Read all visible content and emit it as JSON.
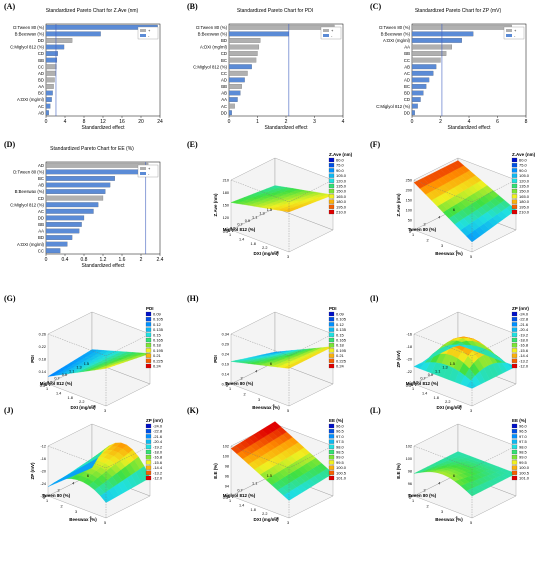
{
  "figure": {
    "panel_labels": [
      "(A)",
      "(B)",
      "(C)",
      "(D)",
      "(E)",
      "(F)",
      "(G)",
      "(H)",
      "(I)",
      "(J)",
      "(K)",
      "(L)"
    ]
  },
  "chart_data": [
    {
      "type": "bar",
      "panel": "A",
      "title": "Standardized Pareto Chart for Z.Ave (nm)",
      "xlabel": "Standardized effect",
      "legend": [
        "+",
        "-"
      ],
      "colors": {
        "plus": "#b0b0b0",
        "minus": "#5b8bd6"
      },
      "categories": [
        "D:Tween 80 (%)",
        "B:Beeswax (%)",
        "DD",
        "C:Miglyol 812 (%)",
        "CD",
        "BB",
        "CC",
        "AD",
        "BD",
        "AA",
        "BC",
        "A:DXI (mg/ml)",
        "AC",
        "AB"
      ],
      "values": [
        23.5,
        11.5,
        5.5,
        3.8,
        2.5,
        2.3,
        2.2,
        2.0,
        1.8,
        1.6,
        1.4,
        1.2,
        0.9,
        0.6
      ],
      "signs": [
        "-",
        "-",
        "+",
        "-",
        "-",
        "-",
        "+",
        "+",
        "+",
        "+",
        "-",
        "-",
        "-",
        "-"
      ],
      "xticks": [
        0,
        4,
        8,
        12,
        16,
        20,
        24
      ],
      "xlim": [
        0,
        24
      ],
      "ref_line": 2.1
    },
    {
      "type": "bar",
      "panel": "B",
      "title": "Standardized Pareto Chart for PDI",
      "xlabel": "Standardized effect",
      "legend": [
        "+",
        "-"
      ],
      "categories": [
        "D:Tween 80 (%)",
        "B:Beeswax (%)",
        "BD",
        "A:DXI (mg/ml)",
        "CD",
        "BC",
        "C:Miglyol 812 (%)",
        "CC",
        "AD",
        "BB",
        "AB",
        "AA",
        "AC",
        "DD"
      ],
      "values": [
        3.7,
        2.1,
        1.1,
        1.05,
        1.0,
        0.95,
        0.8,
        0.65,
        0.55,
        0.45,
        0.4,
        0.3,
        0.2,
        0.1
      ],
      "signs": [
        "+",
        "-",
        "+",
        "+",
        "+",
        "+",
        "-",
        "+",
        "-",
        "+",
        "-",
        "-",
        "+",
        "-"
      ],
      "xticks": [
        0,
        1,
        2,
        3,
        4
      ],
      "xlim": [
        0,
        4
      ],
      "ref_line": 2.1
    },
    {
      "type": "bar",
      "panel": "C",
      "title": "Standardized Pareto Chart for ZP (mV)",
      "xlabel": "Standardized effect",
      "legend": [
        "+",
        "-"
      ],
      "categories": [
        "D:Tween 80 (%)",
        "B:Beeswax (%)",
        "A:DXI (mg/ml)",
        "AA",
        "BB",
        "CC",
        "AB",
        "AC",
        "AD",
        "BC",
        "BD",
        "CD",
        "C:Miglyol 812 (%)",
        "DD"
      ],
      "values": [
        7.0,
        4.3,
        3.5,
        2.8,
        2.4,
        2.0,
        1.7,
        1.5,
        1.2,
        1.0,
        0.8,
        0.6,
        0.4,
        0.2
      ],
      "signs": [
        "+",
        "-",
        "-",
        "+",
        "+",
        "+",
        "-",
        "-",
        "-",
        "-",
        "-",
        "-",
        "-",
        "-"
      ],
      "xticks": [
        0,
        2,
        4,
        6,
        8
      ],
      "xlim": [
        0,
        8
      ],
      "ref_line": 2.1
    },
    {
      "type": "bar",
      "panel": "D",
      "title": "Standardized Pareto Chart for EE (%)",
      "xlabel": "Standardized effect",
      "legend": [
        "+",
        "-"
      ],
      "categories": [
        "AD",
        "D:Tween 80 (%)",
        "BC",
        "AB",
        "B:Beeswax (%)",
        "CD",
        "C:Miglyol 812 (%)",
        "AC",
        "DD",
        "BB",
        "AA",
        "BD",
        "A:DXI (mg/ml)",
        "CC"
      ],
      "values": [
        2.15,
        2.1,
        1.45,
        1.35,
        1.25,
        1.2,
        1.1,
        1.0,
        0.8,
        0.75,
        0.7,
        0.55,
        0.45,
        0.3
      ],
      "signs": [
        "+",
        "-",
        "-",
        "-",
        "-",
        "+",
        "-",
        "-",
        "-",
        "-",
        "-",
        "-",
        "-",
        "-"
      ],
      "xticks": [
        0,
        0.4,
        0.8,
        1.2,
        1.6,
        2.0,
        2.4
      ],
      "xlim": [
        0,
        2.4
      ],
      "ref_line": 2.1
    },
    {
      "type": "surface",
      "panel": "E",
      "zlabel": "Z.Ave (nm)",
      "xlabel": "DXI (mg/ml)",
      "ylabel": "Miglyol 812 (%)",
      "legend_title": "Z.Ave (nm)",
      "legend_items": [
        "60.0",
        "75.0",
        "90.0",
        "105.0",
        "120.0",
        "135.0",
        "150.0",
        "165.0",
        "180.0",
        "195.0",
        "210.0"
      ],
      "xticks": [
        "1",
        "1.4",
        "1.8",
        "2.2",
        "2.6",
        "3"
      ],
      "yticks": [
        "0.3",
        "0.5",
        "0.7",
        "0.9",
        "1.1",
        "1.3",
        "1.5"
      ],
      "zticks": [
        "210",
        "180",
        "150",
        "120",
        "90"
      ]
    },
    {
      "type": "surface",
      "panel": "F",
      "zlabel": "Z.Ave (nm)",
      "xlabel": "Beeswax (%)",
      "ylabel": "Tween 80 (%)",
      "legend_title": "Z.Ave (nm)",
      "legend_items": [
        "60.0",
        "75.0",
        "90.0",
        "105.0",
        "120.0",
        "135.0",
        "150.0",
        "165.0",
        "180.0",
        "195.0",
        "210.0"
      ],
      "xticks": [
        "1",
        "2",
        "3",
        "4",
        "5"
      ],
      "yticks": [
        "0",
        "2",
        "4",
        "6"
      ],
      "zticks": [
        "250",
        "200",
        "150",
        "100",
        "50",
        "0"
      ]
    },
    {
      "type": "surface",
      "panel": "G",
      "zlabel": "PDI",
      "xlabel": "DXI (mg/ml)",
      "ylabel": "Miglyol 812 (%)",
      "legend_title": "PDI",
      "legend_items": [
        "0.09",
        "0.105",
        "0.12",
        "0.135",
        "0.15",
        "0.165",
        "0.18",
        "0.195",
        "0.21",
        "0.225",
        "0.24"
      ],
      "xticks": [
        "1",
        "1.4",
        "1.8",
        "2.2",
        "2.6",
        "3"
      ],
      "yticks": [
        "0.3",
        "0.5",
        "0.7",
        "0.9",
        "1.1",
        "1.3",
        "1.5"
      ],
      "zticks": [
        "0.26",
        "0.22",
        "0.18",
        "0.14",
        "0.1"
      ]
    },
    {
      "type": "surface",
      "panel": "H",
      "zlabel": "PDI",
      "xlabel": "Beeswax (%)",
      "ylabel": "Tween 80 (%)",
      "legend_title": "PDI",
      "legend_items": [
        "0.09",
        "0.105",
        "0.12",
        "0.135",
        "0.15",
        "0.165",
        "0.18",
        "0.195",
        "0.21",
        "0.225",
        "0.24"
      ],
      "xticks": [
        "1",
        "2",
        "3",
        "4",
        "5"
      ],
      "yticks": [
        "0",
        "2",
        "4",
        "6"
      ],
      "zticks": [
        "0.34",
        "0.29",
        "0.24",
        "0.19",
        "0.14",
        "0.09"
      ]
    },
    {
      "type": "surface",
      "panel": "I",
      "zlabel": "ZP (mV)",
      "xlabel": "DXI (mg/ml)",
      "ylabel": "Miglyol 812 (%)",
      "legend_title": "ZP (mV)",
      "legend_items": [
        "-24.0",
        "-22.8",
        "-21.6",
        "-20.4",
        "-19.2",
        "-18.0",
        "-16.8",
        "-15.6",
        "-14.4",
        "-13.2",
        "-12.0"
      ],
      "xticks": [
        "1",
        "1.4",
        "1.8",
        "2.2",
        "2.6",
        "3"
      ],
      "yticks": [
        "0.3",
        "0.5",
        "0.7",
        "0.9",
        "1.1",
        "1.3",
        "1.5"
      ],
      "zticks": [
        "-16",
        "-18",
        "-20",
        "-22",
        "-24"
      ]
    },
    {
      "type": "surface",
      "panel": "J",
      "zlabel": "ZP (mV)",
      "xlabel": "Beeswax (%)",
      "ylabel": "Tween 80 (%)",
      "legend_title": "ZP (mV)",
      "legend_items": [
        "-24.0",
        "-22.8",
        "-21.6",
        "-20.4",
        "-19.2",
        "-18.0",
        "-16.8",
        "-15.6",
        "-14.4",
        "-13.2",
        "-12.0"
      ],
      "xticks": [
        "1",
        "2",
        "3",
        "4",
        "5"
      ],
      "yticks": [
        "0",
        "2",
        "4",
        "6"
      ],
      "zticks": [
        "-12",
        "-16",
        "-20",
        "-24",
        "-28"
      ]
    },
    {
      "type": "surface",
      "panel": "K",
      "zlabel": "E.E (%)",
      "xlabel": "DXI (mg/ml)",
      "ylabel": "Miglyol 812 (%)",
      "legend_title": "EE (%)",
      "legend_items": [
        "96.0",
        "96.5",
        "97.0",
        "97.5",
        "98.0",
        "98.5",
        "99.0",
        "99.5",
        "100.0",
        "100.5",
        "101.0"
      ],
      "xticks": [
        "1",
        "1.4",
        "1.8",
        "2.2",
        "2.6",
        "3"
      ],
      "yticks": [
        "0.3",
        "0.7",
        "1.1",
        "1.5"
      ],
      "zticks": [
        "102",
        "100",
        "98",
        "96",
        "94",
        "92"
      ]
    },
    {
      "type": "surface",
      "panel": "L",
      "zlabel": "E.E (%)",
      "xlabel": "Beeswax (%)",
      "ylabel": "Tween 80 (%)",
      "legend_title": "EE (%)",
      "legend_items": [
        "96.0",
        "96.5",
        "97.0",
        "97.5",
        "98.0",
        "98.5",
        "99.0",
        "99.5",
        "100.0",
        "100.5",
        "101.0"
      ],
      "xticks": [
        "1",
        "2",
        "3",
        "4",
        "5"
      ],
      "yticks": [
        "0",
        "2",
        "4",
        "6"
      ],
      "zticks": [
        "102",
        "100",
        "98",
        "96",
        "94"
      ]
    }
  ]
}
